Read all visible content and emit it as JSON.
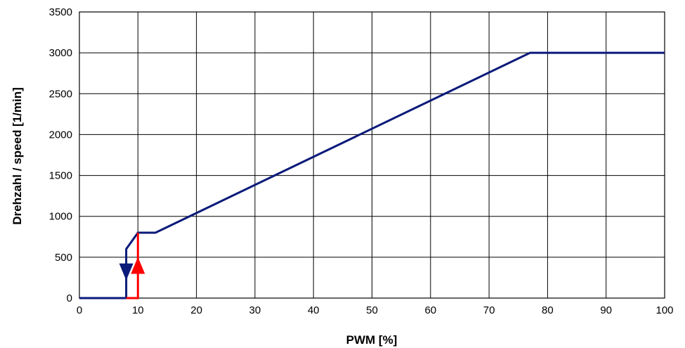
{
  "chart_data": {
    "type": "line",
    "title": "",
    "xlabel": "PWM [%]",
    "ylabel": "Drehzahl / speed [1/min]",
    "xlim": [
      0,
      100
    ],
    "ylim": [
      0,
      3500
    ],
    "x_ticks": [
      0,
      10,
      20,
      30,
      40,
      50,
      60,
      70,
      80,
      90,
      100
    ],
    "y_ticks": [
      0,
      500,
      1000,
      1500,
      2000,
      2500,
      3000,
      3500
    ],
    "grid": true,
    "legend": "none",
    "series": [
      {
        "color": "#0a1a7a",
        "points": [
          [
            0,
            0
          ],
          [
            8,
            0
          ],
          [
            8,
            600
          ],
          [
            10,
            800
          ],
          [
            13,
            800
          ],
          [
            77,
            3000
          ],
          [
            100,
            3000
          ]
        ]
      },
      {
        "color": "#ff0000",
        "points": [
          [
            8,
            0
          ],
          [
            10,
            0
          ],
          [
            10,
            800
          ]
        ]
      }
    ],
    "markers": [
      {
        "shape": "triangle-down",
        "color": "#0a1a7a",
        "x": 8,
        "y": 320
      },
      {
        "shape": "triangle-up",
        "color": "#ff0000",
        "x": 10,
        "y": 400
      }
    ]
  }
}
